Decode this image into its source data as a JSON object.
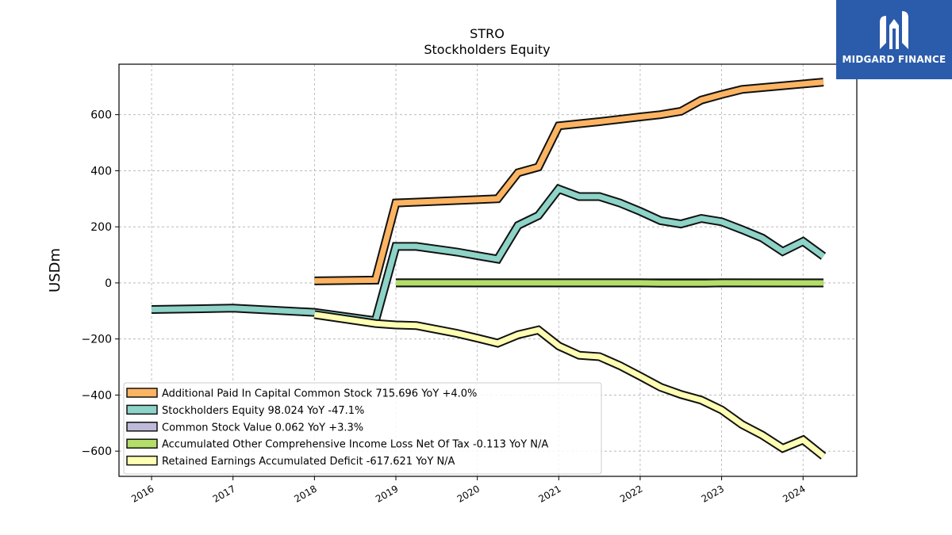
{
  "brand": {
    "name": "MIDGARD FINANCE",
    "logo_icon": "midgard-logo-icon",
    "color": "#2b5bab"
  },
  "chart_data": {
    "type": "line",
    "title": "STRO",
    "subtitle": "Stockholders  Equity",
    "ylabel": "USDm",
    "xlabel": "",
    "xlim": [
      2015.6,
      2024.66
    ],
    "ylim": [
      -690,
      780
    ],
    "x_ticks": [
      2016,
      2017,
      2018,
      2019,
      2020,
      2021,
      2022,
      2023,
      2024
    ],
    "y_ticks": [
      -600,
      -400,
      -200,
      0,
      200,
      400,
      600
    ],
    "y_tick_labels": [
      "−600",
      "−400",
      "−200",
      "0",
      "200",
      "400",
      "600"
    ],
    "grid": true,
    "legend_position": "lower-left",
    "series": [
      {
        "name": "Stockholders Equity",
        "legend": "Stockholders Equity  98.024 YoY -47.1%",
        "color": "#8dd3c7",
        "x": [
          2016.0,
          2017.0,
          2018.0,
          2018.75,
          2019.0,
          2019.25,
          2019.75,
          2020.0,
          2020.25,
          2020.5,
          2020.75,
          2021.0,
          2021.25,
          2021.5,
          2021.75,
          2022.0,
          2022.25,
          2022.5,
          2022.75,
          2023.0,
          2023.25,
          2023.5,
          2023.75,
          2024.0,
          2024.25
        ],
        "y": [
          -95,
          -90,
          -105,
          -135,
          130,
          130,
          110,
          97,
          85,
          205,
          240,
          335,
          308,
          308,
          285,
          255,
          222,
          210,
          230,
          218,
          190,
          160,
          112,
          148,
          95
        ]
      },
      {
        "name": "Additional Paid In Capital Common Stock",
        "legend": "Additional Paid In Capital Common Stock  715.696 YoY +4.0%",
        "color": "#fdb462",
        "x": [
          2018.0,
          2018.75,
          2019.0,
          2020.0,
          2020.25,
          2020.5,
          2020.75,
          2021.0,
          2021.5,
          2022.0,
          2022.25,
          2022.5,
          2022.75,
          2023.0,
          2023.25,
          2024.25
        ],
        "y": [
          7,
          10,
          285,
          297,
          300,
          393,
          413,
          560,
          575,
          592,
          600,
          612,
          652,
          672,
          690,
          716
        ]
      },
      {
        "name": "Common Stock Value",
        "legend": "Common Stock Value  0.062 YoY +3.3%",
        "color": "#bebada",
        "x": [
          2019.0,
          2024.25
        ],
        "y": [
          0.05,
          0.062
        ]
      },
      {
        "name": "Accumulated Other Comprehensive Income Loss Net Of Tax",
        "legend": "Accumulated Other Comprehensive Income Loss Net Of Tax  -0.113 YoY N/A",
        "color": "#b3de69",
        "x": [
          2019.0,
          2022.0,
          2022.25,
          2022.5,
          2022.75,
          2023.0,
          2024.25
        ],
        "y": [
          0,
          0,
          -1,
          -1,
          -1,
          0,
          -0.113
        ]
      },
      {
        "name": "Retained Earnings Accumulated Deficit",
        "legend": "Retained Earnings Accumulated Deficit  -617.621 YoY N/A",
        "color": "#ffffb3",
        "x": [
          2018.0,
          2018.75,
          2019.0,
          2019.25,
          2019.75,
          2020.0,
          2020.25,
          2020.5,
          2020.75,
          2021.0,
          2021.25,
          2021.5,
          2021.75,
          2022.0,
          2022.25,
          2022.5,
          2022.75,
          2023.0,
          2023.25,
          2023.5,
          2023.75,
          2024.0,
          2024.25
        ],
        "y": [
          -113,
          -145,
          -150,
          -152,
          -180,
          -197,
          -215,
          -185,
          -168,
          -225,
          -258,
          -263,
          -295,
          -333,
          -372,
          -398,
          -418,
          -453,
          -505,
          -543,
          -590,
          -560,
          -618
        ]
      }
    ]
  }
}
